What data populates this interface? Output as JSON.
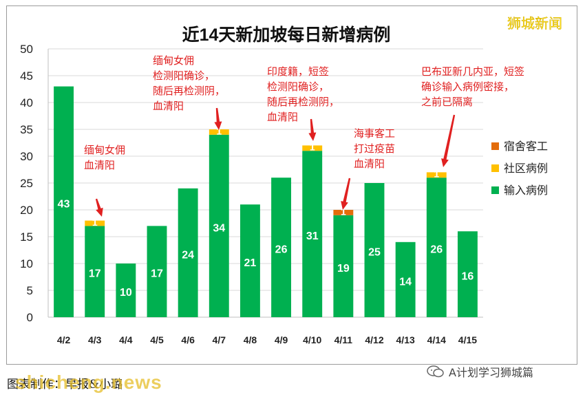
{
  "brand": "狮城新闻",
  "footer_text": "图表制作：早报&小璐",
  "watermark": "shicheng.news",
  "wechat_account": "A计划学习狮城篇",
  "colors": {
    "dorm": "#E36C0A",
    "community": "#FFC000",
    "imported": "#00B050",
    "annotation": "#E02020",
    "brand": "#FFE01A"
  },
  "chart_data": {
    "type": "bar",
    "stacked": true,
    "title": "近14天新加坡每日新增病例",
    "categories": [
      "4/2",
      "4/3",
      "4/4",
      "4/5",
      "4/6",
      "4/7",
      "4/8",
      "4/9",
      "4/10",
      "4/11",
      "4/12",
      "4/13",
      "4/14",
      "4/15"
    ],
    "series": [
      {
        "name": "输入病例",
        "values": [
          43,
          17,
          10,
          17,
          24,
          34,
          21,
          26,
          31,
          19,
          25,
          14,
          26,
          16
        ]
      },
      {
        "name": "社区病例",
        "values": [
          0,
          1,
          0,
          0,
          0,
          1,
          0,
          0,
          1,
          0,
          0,
          0,
          1,
          0
        ]
      },
      {
        "name": "宿舍客工",
        "values": [
          0,
          0,
          0,
          0,
          0,
          0,
          0,
          0,
          0,
          1,
          0,
          0,
          0,
          0
        ]
      }
    ],
    "ylim": [
      0,
      50
    ],
    "yticks": [
      0,
      5,
      10,
      15,
      20,
      25,
      30,
      35,
      40,
      45,
      50
    ],
    "grid": true,
    "legend_position": "right",
    "legend": [
      "宿舍客工",
      "社区病例",
      "输入病例"
    ],
    "annotations": [
      {
        "category": "4/3",
        "lines": [
          "缅甸女佣",
          "血清阳"
        ]
      },
      {
        "category": "4/7",
        "lines": [
          "缅甸女佣",
          "检测阳确诊，",
          "随后再检测阴，",
          "血清阳"
        ]
      },
      {
        "category": "4/10",
        "lines": [
          "印度籍，短签",
          "检测阳确诊，",
          "随后再检测阴，",
          "血清阳"
        ]
      },
      {
        "category": "4/11",
        "lines": [
          "海事客工",
          "打过疫苗",
          "血清阳"
        ]
      },
      {
        "category": "4/14",
        "lines": [
          "巴布亚新几内亚，短签",
          "确诊输入病例密接，",
          "之前已隔离"
        ]
      }
    ]
  }
}
